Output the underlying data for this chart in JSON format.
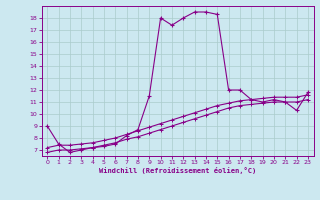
{
  "xlabel": "Windchill (Refroidissement éolien,°C)",
  "bg_color": "#cce8f0",
  "line_color": "#880088",
  "grid_color": "#aacccc",
  "xlim": [
    -0.5,
    23.5
  ],
  "ylim": [
    6.5,
    19.0
  ],
  "yticks": [
    7,
    8,
    9,
    10,
    11,
    12,
    13,
    14,
    15,
    16,
    17,
    18
  ],
  "xticks": [
    0,
    1,
    2,
    3,
    4,
    5,
    6,
    7,
    8,
    9,
    10,
    11,
    12,
    13,
    14,
    15,
    16,
    17,
    18,
    19,
    20,
    21,
    22,
    23
  ],
  "series1_x": [
    0,
    1,
    2,
    3,
    4,
    5,
    6,
    7,
    8,
    9,
    10,
    11,
    12,
    13,
    14,
    15,
    16,
    17,
    18,
    19,
    20,
    21,
    22,
    23
  ],
  "series1_y": [
    9.0,
    7.5,
    6.8,
    7.0,
    7.2,
    7.3,
    7.5,
    8.2,
    8.7,
    11.5,
    18.0,
    17.4,
    18.0,
    18.5,
    18.5,
    18.3,
    12.0,
    12.0,
    11.2,
    11.0,
    11.2,
    11.0,
    10.3,
    11.8
  ],
  "series2_x": [
    0,
    1,
    2,
    3,
    4,
    5,
    6,
    7,
    8,
    9,
    10,
    11,
    12,
    13,
    14,
    15,
    16,
    17,
    18,
    19,
    20,
    21,
    22,
    23
  ],
  "series2_y": [
    6.8,
    7.0,
    7.0,
    7.1,
    7.2,
    7.4,
    7.6,
    7.9,
    8.1,
    8.4,
    8.7,
    9.0,
    9.3,
    9.6,
    9.9,
    10.2,
    10.5,
    10.7,
    10.8,
    10.9,
    11.0,
    11.0,
    11.0,
    11.2
  ],
  "series3_x": [
    0,
    1,
    2,
    3,
    4,
    5,
    6,
    7,
    8,
    9,
    10,
    11,
    12,
    13,
    14,
    15,
    16,
    17,
    18,
    19,
    20,
    21,
    22,
    23
  ],
  "series3_y": [
    7.2,
    7.4,
    7.4,
    7.5,
    7.6,
    7.8,
    8.0,
    8.3,
    8.6,
    8.9,
    9.2,
    9.5,
    9.8,
    10.1,
    10.4,
    10.7,
    10.9,
    11.1,
    11.2,
    11.3,
    11.4,
    11.4,
    11.4,
    11.6
  ]
}
